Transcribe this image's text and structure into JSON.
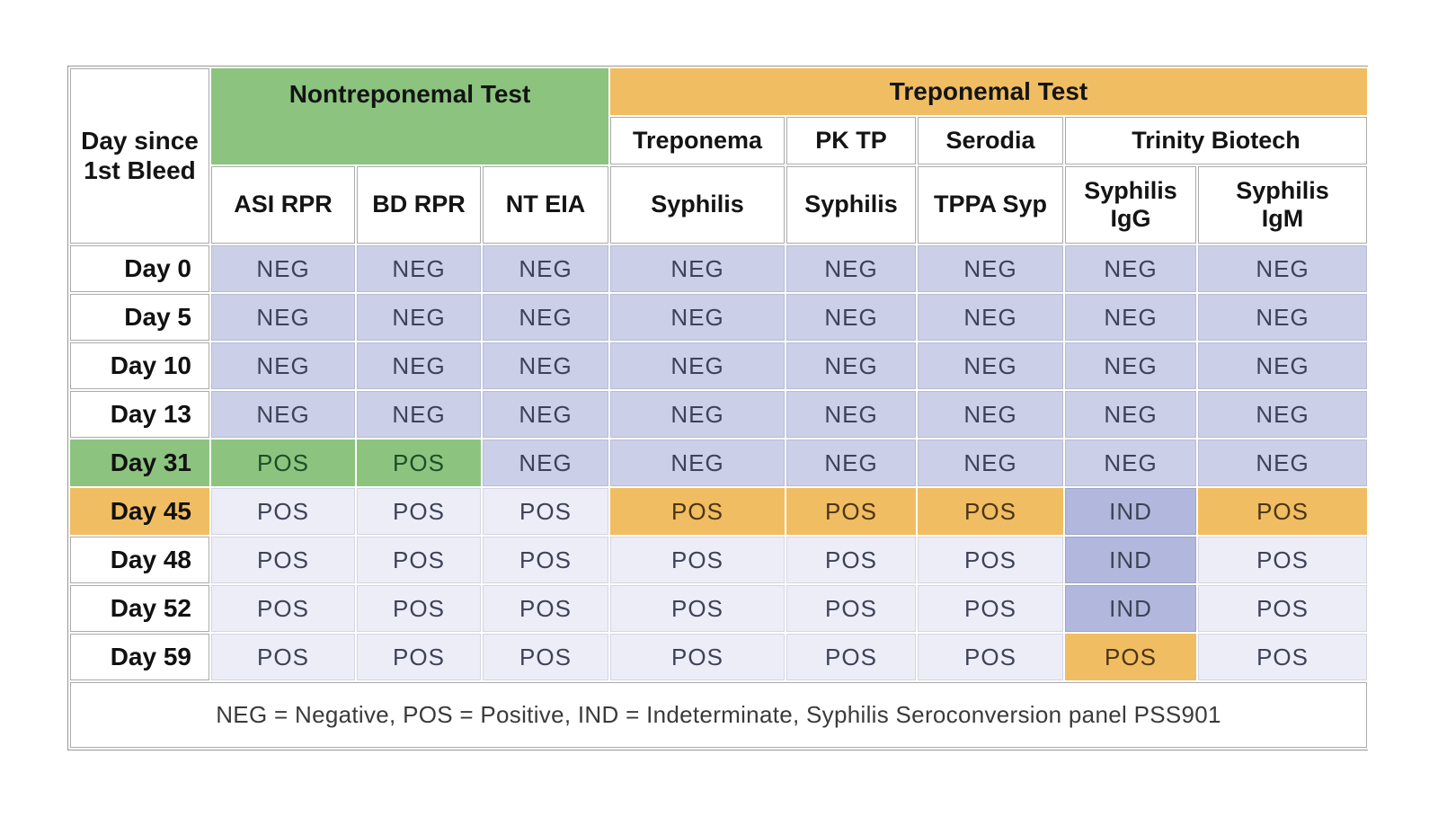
{
  "table": {
    "corner_label": "Day since\n1st Bleed",
    "group_headers": {
      "nontreponemal": "Nontreponemal Test",
      "treponemal": "Treponemal Test"
    },
    "vendor_headers": [
      "Treponema",
      "PK TP",
      "Serodia",
      "Trinity Biotech"
    ],
    "test_headers": [
      "ASI RPR",
      "BD RPR",
      "NT EIA",
      "Syphilis",
      "Syphilis",
      "TPPA Syp",
      "Syphilis\nIgG",
      "Syphilis\nIgM"
    ],
    "rows": [
      {
        "day": "Day 0",
        "day_style": "white",
        "values": [
          {
            "text": "NEG",
            "style": "neg"
          },
          {
            "text": "NEG",
            "style": "neg"
          },
          {
            "text": "NEG",
            "style": "neg"
          },
          {
            "text": "NEG",
            "style": "neg"
          },
          {
            "text": "NEG",
            "style": "neg"
          },
          {
            "text": "NEG",
            "style": "neg"
          },
          {
            "text": "NEG",
            "style": "neg"
          },
          {
            "text": "NEG",
            "style": "neg"
          }
        ]
      },
      {
        "day": "Day 5",
        "day_style": "white",
        "values": [
          {
            "text": "NEG",
            "style": "neg"
          },
          {
            "text": "NEG",
            "style": "neg"
          },
          {
            "text": "NEG",
            "style": "neg"
          },
          {
            "text": "NEG",
            "style": "neg"
          },
          {
            "text": "NEG",
            "style": "neg"
          },
          {
            "text": "NEG",
            "style": "neg"
          },
          {
            "text": "NEG",
            "style": "neg"
          },
          {
            "text": "NEG",
            "style": "neg"
          }
        ]
      },
      {
        "day": "Day 10",
        "day_style": "white",
        "values": [
          {
            "text": "NEG",
            "style": "neg"
          },
          {
            "text": "NEG",
            "style": "neg"
          },
          {
            "text": "NEG",
            "style": "neg"
          },
          {
            "text": "NEG",
            "style": "neg"
          },
          {
            "text": "NEG",
            "style": "neg"
          },
          {
            "text": "NEG",
            "style": "neg"
          },
          {
            "text": "NEG",
            "style": "neg"
          },
          {
            "text": "NEG",
            "style": "neg"
          }
        ]
      },
      {
        "day": "Day 13",
        "day_style": "white",
        "values": [
          {
            "text": "NEG",
            "style": "neg"
          },
          {
            "text": "NEG",
            "style": "neg"
          },
          {
            "text": "NEG",
            "style": "neg"
          },
          {
            "text": "NEG",
            "style": "neg"
          },
          {
            "text": "NEG",
            "style": "neg"
          },
          {
            "text": "NEG",
            "style": "neg"
          },
          {
            "text": "NEG",
            "style": "neg"
          },
          {
            "text": "NEG",
            "style": "neg"
          }
        ]
      },
      {
        "day": "Day 31",
        "day_style": "green",
        "values": [
          {
            "text": "POS",
            "style": "green"
          },
          {
            "text": "POS",
            "style": "green"
          },
          {
            "text": "NEG",
            "style": "neg"
          },
          {
            "text": "NEG",
            "style": "neg"
          },
          {
            "text": "NEG",
            "style": "neg"
          },
          {
            "text": "NEG",
            "style": "neg"
          },
          {
            "text": "NEG",
            "style": "neg"
          },
          {
            "text": "NEG",
            "style": "neg"
          }
        ]
      },
      {
        "day": "Day 45",
        "day_style": "orange",
        "values": [
          {
            "text": "POS",
            "style": "pos"
          },
          {
            "text": "POS",
            "style": "pos"
          },
          {
            "text": "POS",
            "style": "pos"
          },
          {
            "text": "POS",
            "style": "orange"
          },
          {
            "text": "POS",
            "style": "orange"
          },
          {
            "text": "POS",
            "style": "orange"
          },
          {
            "text": "IND",
            "style": "ind"
          },
          {
            "text": "POS",
            "style": "orange"
          }
        ]
      },
      {
        "day": "Day 48",
        "day_style": "white",
        "values": [
          {
            "text": "POS",
            "style": "pos"
          },
          {
            "text": "POS",
            "style": "pos"
          },
          {
            "text": "POS",
            "style": "pos"
          },
          {
            "text": "POS",
            "style": "pos"
          },
          {
            "text": "POS",
            "style": "pos"
          },
          {
            "text": "POS",
            "style": "pos"
          },
          {
            "text": "IND",
            "style": "ind"
          },
          {
            "text": "POS",
            "style": "pos"
          }
        ]
      },
      {
        "day": "Day 52",
        "day_style": "white",
        "values": [
          {
            "text": "POS",
            "style": "pos"
          },
          {
            "text": "POS",
            "style": "pos"
          },
          {
            "text": "POS",
            "style": "pos"
          },
          {
            "text": "POS",
            "style": "pos"
          },
          {
            "text": "POS",
            "style": "pos"
          },
          {
            "text": "POS",
            "style": "pos"
          },
          {
            "text": "IND",
            "style": "ind"
          },
          {
            "text": "POS",
            "style": "pos"
          }
        ]
      },
      {
        "day": "Day 59",
        "day_style": "white",
        "values": [
          {
            "text": "POS",
            "style": "pos"
          },
          {
            "text": "POS",
            "style": "pos"
          },
          {
            "text": "POS",
            "style": "pos"
          },
          {
            "text": "POS",
            "style": "pos"
          },
          {
            "text": "POS",
            "style": "pos"
          },
          {
            "text": "POS",
            "style": "pos"
          },
          {
            "text": "POS",
            "style": "orange"
          },
          {
            "text": "POS",
            "style": "pos"
          }
        ]
      }
    ],
    "legend": "NEG = Negative, POS = Positive, IND = Indeterminate, Syphilis Seroconversion panel PSS901"
  },
  "colors": {
    "nontreponemal_green": "#8cc47f",
    "treponemal_orange": "#f0bd62",
    "neg_lavender": "#cbcfe8",
    "pos_light": "#ecedf6",
    "ind_periwinkle": "#b2b8dd",
    "value_text": "#3d4257",
    "pos_on_green_text": "#1e4d26",
    "pos_on_orange_text": "#4c3514",
    "border_gray": "#979797"
  }
}
